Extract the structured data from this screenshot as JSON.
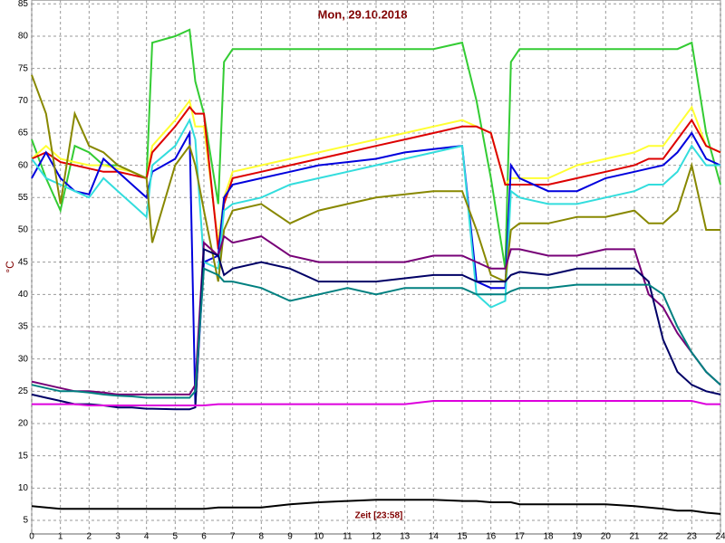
{
  "chart_data": {
    "type": "line",
    "title": "Mon, 29.10.2018",
    "ylabel": "°C",
    "annotation": "Zeit [23:58]",
    "x": [
      0,
      0.5,
      1,
      1.5,
      2,
      2.5,
      3,
      3.5,
      4,
      4.2,
      5,
      5.5,
      5.7,
      6,
      6.5,
      6.7,
      7,
      8,
      9,
      10,
      11,
      12,
      13,
      14,
      15,
      15.5,
      16,
      16.5,
      16.7,
      17,
      18,
      19,
      20,
      21,
      21.5,
      22,
      22.5,
      23,
      23.5,
      24
    ],
    "xlim": [
      0,
      24
    ],
    "xticks": [
      0,
      1,
      2,
      3,
      4,
      5,
      6,
      7,
      8,
      9,
      10,
      11,
      12,
      13,
      14,
      15,
      16,
      17,
      18,
      19,
      20,
      21,
      22,
      23,
      24
    ],
    "ylim": [
      2.9,
      85.6
    ],
    "yticks": [
      5,
      10,
      15,
      20,
      25,
      30,
      35,
      40,
      45,
      50,
      55,
      60,
      65,
      70,
      75,
      80,
      85
    ],
    "grid": true,
    "series": [
      {
        "color": "#33cc33",
        "values": [
          64,
          58,
          53,
          63,
          62,
          60,
          60,
          59,
          58,
          79,
          80,
          81,
          73,
          68,
          54,
          76,
          78,
          78,
          78,
          78,
          78,
          78,
          78,
          78,
          79,
          70,
          58,
          44,
          76,
          78,
          78,
          78,
          78,
          78,
          78,
          78,
          78,
          79,
          65,
          57
        ]
      },
      {
        "color": "#ffff33",
        "values": [
          61,
          63,
          61,
          60.5,
          60,
          60,
          59.5,
          59,
          58,
          63,
          67,
          70,
          66,
          66,
          48,
          55,
          59,
          60,
          61,
          62,
          63,
          64,
          65,
          66,
          67,
          66,
          65,
          57,
          58,
          58,
          58,
          60,
          61,
          62,
          63,
          63,
          66,
          69,
          63,
          62
        ]
      },
      {
        "color": "#dd0000",
        "values": [
          61,
          62,
          60.5,
          60,
          59.5,
          59,
          59,
          58.5,
          58,
          62,
          66,
          69,
          68,
          68,
          47,
          54,
          58,
          59,
          60,
          61,
          62,
          63,
          64,
          65,
          66,
          66,
          65,
          57,
          57,
          57,
          57,
          58,
          59,
          60,
          61,
          61,
          64,
          67,
          63,
          62
        ]
      },
      {
        "color": "#0000dd",
        "values": [
          58,
          62,
          58,
          56,
          55.5,
          61,
          59,
          57,
          55,
          59,
          61,
          65,
          23,
          45,
          46,
          55,
          57,
          58,
          59,
          60,
          60.5,
          61,
          62,
          62.5,
          63,
          42,
          41,
          41,
          60,
          58,
          56,
          56,
          58,
          59,
          59.5,
          60,
          62,
          65,
          61,
          60
        ]
      },
      {
        "color": "#33dddd",
        "values": [
          61,
          58,
          57,
          56,
          55,
          58,
          56,
          54,
          52,
          60,
          63,
          67,
          64,
          45,
          44,
          53,
          54,
          55,
          57,
          58,
          59,
          60,
          61,
          62,
          63,
          40,
          38,
          39,
          56,
          55,
          54,
          54,
          55,
          56,
          57,
          57,
          59,
          63,
          60,
          60
        ]
      },
      {
        "color": "#888800",
        "values": [
          74,
          68,
          54,
          68,
          63,
          62,
          60,
          59,
          58,
          48,
          60,
          63,
          60,
          53,
          42,
          50,
          53,
          54,
          51,
          53,
          54,
          55,
          55.5,
          56,
          56,
          50,
          43,
          42,
          50,
          51,
          51,
          52,
          52,
          53,
          51,
          51,
          53,
          60,
          50,
          50
        ]
      },
      {
        "color": "#770077",
        "values": [
          26.5,
          26,
          25.5,
          25,
          25,
          24.8,
          24.5,
          24.5,
          24.5,
          24.5,
          24.5,
          24.5,
          26,
          48,
          46,
          49,
          48,
          49,
          46,
          45,
          45,
          45,
          45,
          46,
          46,
          45,
          44,
          44,
          47,
          47,
          46,
          46,
          47,
          47,
          40,
          38,
          34,
          31,
          28,
          26
        ]
      },
      {
        "color": "#000066",
        "values": [
          24.5,
          24,
          23.5,
          23,
          23,
          22.8,
          22.5,
          22.5,
          22.3,
          22.3,
          22.2,
          22.2,
          22.5,
          47,
          46,
          43,
          44,
          45,
          44,
          42,
          42,
          42,
          42.5,
          43,
          43,
          42,
          42,
          42,
          43,
          43.5,
          43,
          44,
          44,
          44,
          42,
          33,
          28,
          26,
          25,
          24.5
        ]
      },
      {
        "color": "#008080",
        "values": [
          26,
          25.5,
          25,
          25,
          24.8,
          24.5,
          24.3,
          24.2,
          24,
          24,
          24,
          24,
          25,
          44,
          43,
          42,
          42,
          41,
          39,
          40,
          41,
          40,
          41,
          41,
          41,
          40,
          40,
          40,
          40.5,
          41,
          41,
          41.5,
          41.5,
          41.5,
          41.5,
          40,
          35,
          31,
          28,
          26
        ]
      },
      {
        "color": "#dd00dd",
        "values": [
          23,
          23,
          23,
          23,
          22.8,
          22.8,
          22.8,
          22.8,
          22.8,
          22.8,
          22.8,
          22.8,
          22.8,
          22.8,
          23,
          23,
          23,
          23,
          23,
          23,
          23,
          23,
          23,
          23.5,
          23.5,
          23.5,
          23.5,
          23.5,
          23.5,
          23.5,
          23.5,
          23.5,
          23.5,
          23.5,
          23.5,
          23.5,
          23.5,
          23.5,
          23,
          23
        ]
      },
      {
        "color": "#000000",
        "values": [
          7.2,
          7,
          6.8,
          6.8,
          6.8,
          6.8,
          6.8,
          6.8,
          6.8,
          6.8,
          6.8,
          6.8,
          6.8,
          6.8,
          7,
          7,
          7,
          7,
          7.5,
          7.8,
          8,
          8.2,
          8.2,
          8.2,
          8,
          8,
          7.8,
          7.8,
          7.8,
          7.5,
          7.5,
          7.5,
          7.5,
          7.2,
          7,
          6.8,
          6.5,
          6.5,
          6.2,
          6
        ]
      }
    ]
  }
}
